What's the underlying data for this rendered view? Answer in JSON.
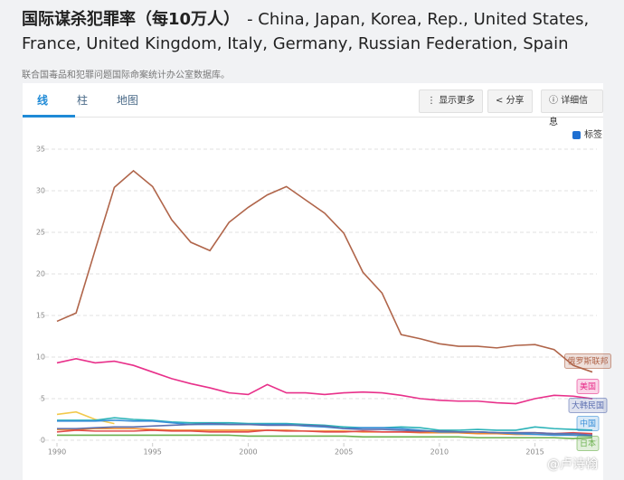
{
  "header": {
    "title": "国际谋杀犯罪率（每10万人）",
    "countries": "- China, Japan, Korea, Rep., United States, France, United Kingdom, Italy, Germany, Russian Federation, Spain",
    "source": "联合国毒品和犯罪问题国际命案统计办公室数据库。"
  },
  "tabs": [
    "线",
    "柱",
    "地图"
  ],
  "buttons": [
    "显示更多",
    "分享",
    "详细信息"
  ],
  "checkbox_label": "标签",
  "watermark": "@卢诗翰",
  "chart_data": {
    "type": "line",
    "x": [
      1990,
      1991,
      1992,
      1993,
      1994,
      1995,
      1996,
      1997,
      1998,
      1999,
      2000,
      2001,
      2002,
      2003,
      2004,
      2005,
      2006,
      2007,
      2008,
      2009,
      2010,
      2011,
      2012,
      2013,
      2014,
      2015,
      2016,
      2017,
      2018
    ],
    "xlim": [
      1990,
      2018
    ],
    "xticks": [
      1990,
      1995,
      2000,
      2005,
      2010,
      2015
    ],
    "ylim": [
      0,
      35
    ],
    "yticks": [
      0,
      5,
      10,
      15,
      20,
      25,
      30,
      35
    ],
    "grid": true,
    "series": [
      {
        "color": "#f2c94c",
        "values": [
          3.1,
          3.4,
          2.5,
          2.0,
          null,
          null,
          null,
          null,
          null,
          null,
          null,
          null,
          null,
          null,
          null,
          null,
          null,
          null,
          null,
          null,
          null,
          null,
          null,
          null,
          null,
          null,
          null,
          null,
          null
        ]
      },
      {
        "color": "#2bb3b8",
        "values": [
          2.4,
          2.4,
          2.4,
          2.7,
          2.5,
          2.4,
          2.2,
          2.1,
          2.1,
          2.1,
          2.0,
          2.0,
          2.0,
          1.9,
          1.8,
          1.6,
          1.5,
          1.5,
          1.6,
          1.5,
          1.2,
          1.2,
          1.3,
          1.2,
          1.2,
          1.6,
          1.4,
          1.3,
          1.2
        ]
      },
      {
        "color": "#f0892a",
        "values": [
          1.3,
          1.3,
          1.4,
          1.4,
          1.4,
          1.3,
          1.2,
          1.2,
          1.2,
          1.2,
          1.2,
          1.2,
          1.2,
          1.1,
          1.1,
          1.1,
          1.0,
          1.0,
          1.0,
          0.9,
          0.9,
          0.9,
          0.8,
          0.8,
          0.7,
          0.7,
          0.7,
          0.6,
          0.6
        ]
      },
      {
        "color": "#e04a4a",
        "values": [
          1.0,
          1.2,
          1.1,
          1.1,
          1.1,
          1.2,
          1.1,
          1.1,
          1.0,
          1.0,
          1.0,
          1.2,
          1.1,
          1.1,
          1.0,
          1.0,
          1.1,
          1.0,
          1.0,
          1.0,
          1.1,
          1.0,
          1.0,
          0.9,
          0.9,
          0.9,
          0.8,
          0.9,
          0.8
        ]
      },
      {
        "name": "日本",
        "color": "#6ab04c",
        "values": [
          0.6,
          0.6,
          0.6,
          0.6,
          0.6,
          0.6,
          0.6,
          0.6,
          0.6,
          0.6,
          0.5,
          0.5,
          0.5,
          0.5,
          0.5,
          0.5,
          0.4,
          0.4,
          0.4,
          0.4,
          0.4,
          0.4,
          0.3,
          0.3,
          0.3,
          0.3,
          0.3,
          0.2,
          0.3
        ]
      },
      {
        "name": "中国",
        "color": "#3a8fd8",
        "values": [
          2.3,
          2.3,
          2.3,
          2.4,
          2.3,
          2.3,
          2.1,
          1.9,
          1.9,
          1.9,
          1.9,
          1.9,
          1.9,
          1.7,
          1.6,
          1.4,
          1.5,
          1.5,
          1.4,
          1.2,
          1.0,
          1.0,
          1.0,
          0.9,
          0.8,
          0.7,
          0.6,
          0.6,
          0.5
        ]
      },
      {
        "name": "大韩民国",
        "color": "#5b6fb0",
        "values": [
          1.4,
          1.4,
          1.5,
          1.6,
          1.6,
          1.7,
          1.8,
          1.9,
          2.0,
          1.9,
          1.9,
          1.8,
          1.8,
          1.8,
          1.7,
          1.4,
          1.3,
          1.3,
          1.2,
          1.1,
          1.1,
          1.0,
          1.0,
          0.9,
          0.9,
          0.9,
          0.8,
          0.8,
          0.6
        ]
      },
      {
        "name": "美国",
        "color": "#e8308a",
        "values": [
          9.3,
          9.8,
          9.3,
          9.5,
          9.0,
          8.2,
          7.4,
          6.8,
          6.3,
          5.7,
          5.5,
          6.7,
          5.7,
          5.7,
          5.5,
          5.7,
          5.8,
          5.7,
          5.4,
          5.0,
          4.8,
          4.7,
          4.7,
          4.5,
          4.4,
          5.0,
          5.4,
          5.3,
          5.0
        ]
      },
      {
        "name": "俄罗斯联邦",
        "color": "#b0654a",
        "values": [
          14.3,
          15.3,
          22.9,
          30.4,
          32.4,
          30.5,
          26.5,
          23.8,
          22.8,
          26.2,
          28.0,
          29.5,
          30.5,
          28.9,
          27.3,
          24.9,
          20.2,
          17.7,
          12.7,
          12.2,
          11.6,
          11.3,
          11.3,
          11.1,
          11.4,
          11.5,
          10.9,
          9.0,
          8.2
        ]
      }
    ]
  }
}
